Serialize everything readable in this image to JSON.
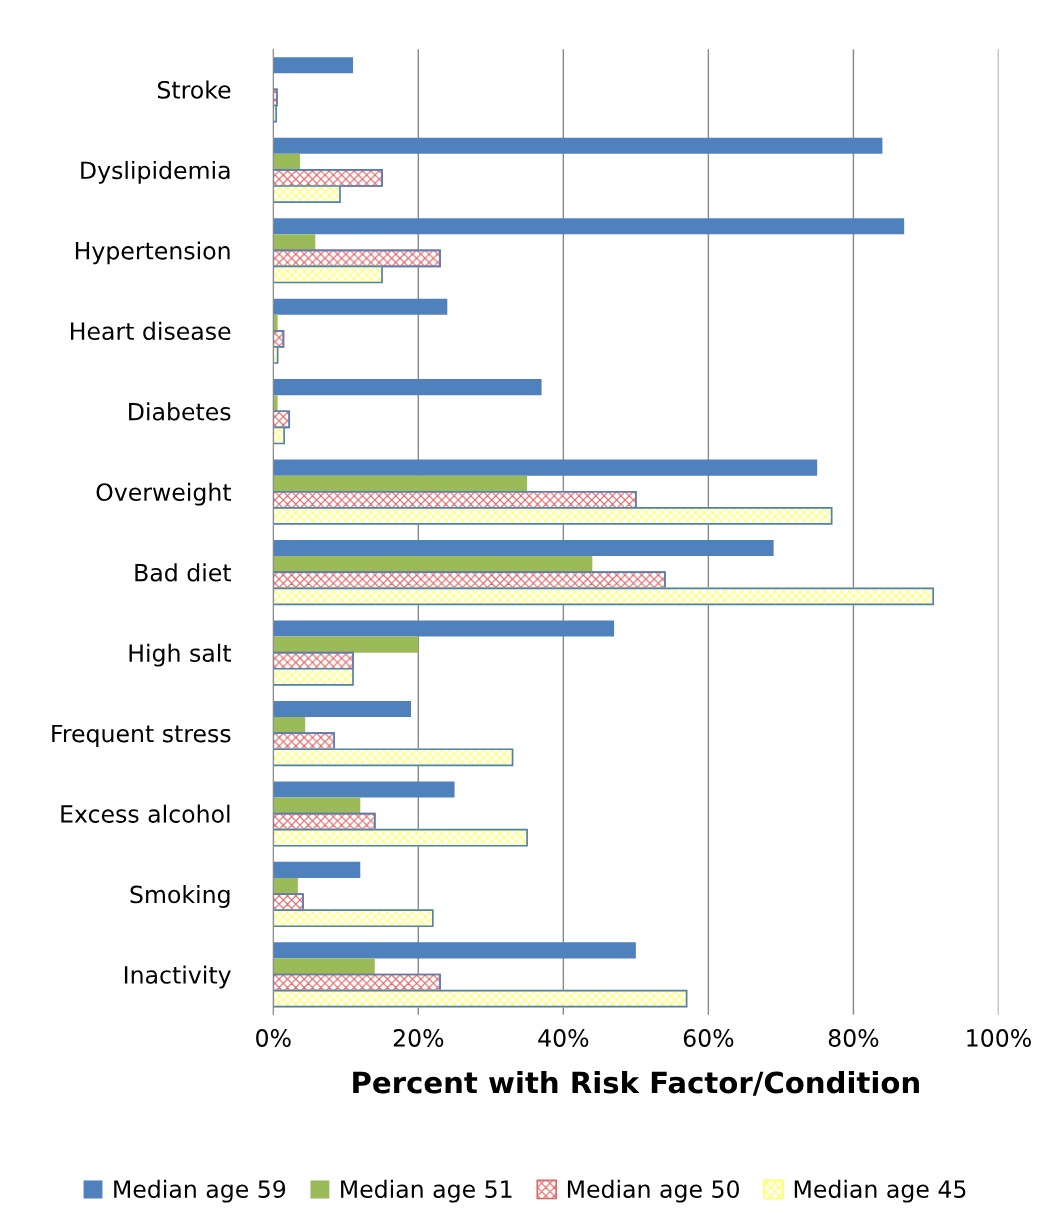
{
  "chart_data": {
    "type": "bar",
    "orientation": "horizontal",
    "xlabel": "Percent with Risk Factor/Condition",
    "categories": [
      "Stroke",
      "Dyslipidemia",
      "Hypertension",
      "Heart disease",
      "Diabetes",
      "Overweight",
      "Bad diet",
      "High salt",
      "Frequent stress",
      "Excess alcohol",
      "Smoking",
      "Inactivity"
    ],
    "series": [
      {
        "name": "Median age 59",
        "color": "#4f81bd",
        "values": [
          11,
          84,
          87,
          24,
          37,
          75,
          69,
          47,
          19,
          25,
          12,
          50
        ]
      },
      {
        "name": "Median age 51",
        "color": "#9bbb59",
        "values": [
          null,
          3.7,
          5.8,
          0.6,
          0.6,
          35,
          44,
          20,
          4.4,
          12,
          3.4,
          14
        ]
      },
      {
        "name": "Median age 50",
        "color": "#e06666",
        "values": [
          0.5,
          15,
          23,
          1.4,
          2.2,
          50,
          54,
          11,
          8.4,
          14,
          4.1,
          23
        ]
      },
      {
        "name": "Median age 45",
        "color": "#ffff66",
        "values": [
          0.4,
          9.2,
          15,
          0.6,
          1.5,
          77,
          91,
          11,
          33,
          35,
          22,
          57
        ]
      }
    ],
    "xlim": [
      0,
      100
    ],
    "xticks": [
      {
        "value": 0,
        "label": "0%"
      },
      {
        "value": 20,
        "label": "20%"
      },
      {
        "value": 40,
        "label": "40%"
      },
      {
        "value": 60,
        "label": "60%"
      },
      {
        "value": 80,
        "label": "80%"
      },
      {
        "value": 100,
        "label": "100%"
      }
    ],
    "grid": "x",
    "legend": "bottom"
  }
}
